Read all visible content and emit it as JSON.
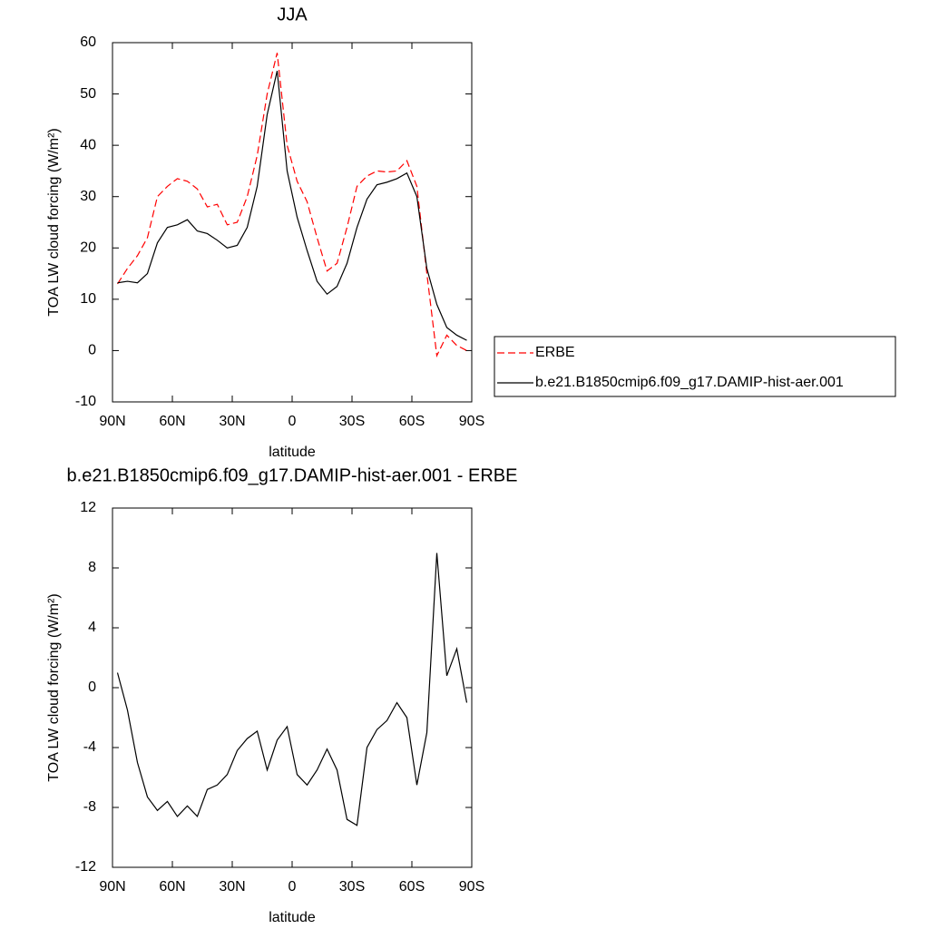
{
  "chart_data": [
    {
      "type": "line",
      "title": "JJA",
      "x_label": "latitude",
      "y_label": "TOA LW cloud forcing (W/m²)",
      "x": [
        87.5,
        82.5,
        77.5,
        72.5,
        67.5,
        62.5,
        57.5,
        52.5,
        47.5,
        42.5,
        37.5,
        32.5,
        27.5,
        22.5,
        17.5,
        12.5,
        7.5,
        2.5,
        -2.5,
        -7.5,
        -12.5,
        -17.5,
        -22.5,
        -27.5,
        -32.5,
        -37.5,
        -42.5,
        -47.5,
        -52.5,
        -57.5,
        -62.5,
        -67.5,
        -72.5,
        -77.5,
        -82.5,
        -87.5
      ],
      "series": [
        {
          "name": "ERBE",
          "color": "#ff0000",
          "dash": true,
          "values": [
            13,
            16,
            18.5,
            22,
            30,
            32,
            33.5,
            33,
            31.5,
            28,
            28.5,
            24.5,
            25,
            30,
            38,
            50,
            58,
            40,
            33,
            29,
            22,
            15.5,
            17,
            24,
            32,
            34,
            35,
            34.8,
            35,
            37,
            32,
            15,
            -1,
            3,
            1,
            0
          ]
        },
        {
          "name": "b.e21.B1850cmip6.f09_g17.DAMIP-hist-aer.001",
          "color": "#000000",
          "dash": false,
          "values": [
            13.2,
            13.5,
            13.2,
            15,
            21,
            24,
            24.5,
            25.5,
            23.3,
            22.8,
            21.5,
            20,
            20.5,
            24,
            32,
            46,
            54.5,
            35,
            26,
            19.5,
            13.5,
            11,
            12.5,
            17,
            24,
            29.5,
            32.3,
            32.8,
            33.5,
            34.6,
            30,
            16,
            9,
            4.5,
            3,
            2
          ]
        }
      ],
      "xlim": [
        90,
        -90
      ],
      "xticks": [
        {
          "value": 90,
          "label": "90N"
        },
        {
          "value": 60,
          "label": "60N"
        },
        {
          "value": 30,
          "label": "30N"
        },
        0,
        {
          "value": -30,
          "label": "30S"
        },
        {
          "value": -60,
          "label": "60S"
        },
        {
          "value": -90,
          "label": "90S"
        }
      ],
      "ylim": [
        -10,
        60
      ],
      "yticks": [
        -10,
        0,
        10,
        20,
        30,
        40,
        50,
        60
      ],
      "legend_position": "right"
    },
    {
      "type": "line",
      "title": "b.e21.B1850cmip6.f09_g17.DAMIP-hist-aer.001 - ERBE",
      "x_label": "latitude",
      "y_label": "TOA LW cloud forcing (W/m²)",
      "x": [
        87.5,
        82.5,
        77.5,
        72.5,
        67.5,
        62.5,
        57.5,
        52.5,
        47.5,
        42.5,
        37.5,
        32.5,
        27.5,
        22.5,
        17.5,
        12.5,
        7.5,
        2.5,
        -2.5,
        -7.5,
        -12.5,
        -17.5,
        -22.5,
        -27.5,
        -32.5,
        -37.5,
        -42.5,
        -47.5,
        -52.5,
        -57.5,
        -62.5,
        -67.5,
        -72.5,
        -77.5,
        -82.5,
        -87.5
      ],
      "values": [
        1.0,
        -1.5,
        -5.0,
        -7.3,
        -8.2,
        -7.6,
        -8.6,
        -7.9,
        -8.6,
        -6.8,
        -6.5,
        -5.8,
        -4.2,
        -3.4,
        -2.9,
        -5.5,
        -3.5,
        -2.6,
        -5.8,
        -6.5,
        -5.5,
        -4.1,
        -5.5,
        -8.8,
        -9.2,
        -4.0,
        -2.8,
        -2.2,
        -1.0,
        -2.0,
        -6.5,
        -3.0,
        9.0,
        0.8,
        2.6,
        -1.0
      ],
      "color": "#000000",
      "xlim": [
        90,
        -90
      ],
      "xticks": [
        {
          "value": 90,
          "label": "90N"
        },
        {
          "value": 60,
          "label": "60N"
        },
        {
          "value": 30,
          "label": "30N"
        },
        0,
        {
          "value": -30,
          "label": "30S"
        },
        {
          "value": -60,
          "label": "60S"
        },
        {
          "value": -90,
          "label": "90S"
        }
      ],
      "ylim": [
        -12,
        12
      ],
      "yticks": [
        -12,
        -8,
        -4,
        0,
        4,
        8,
        12
      ]
    }
  ]
}
